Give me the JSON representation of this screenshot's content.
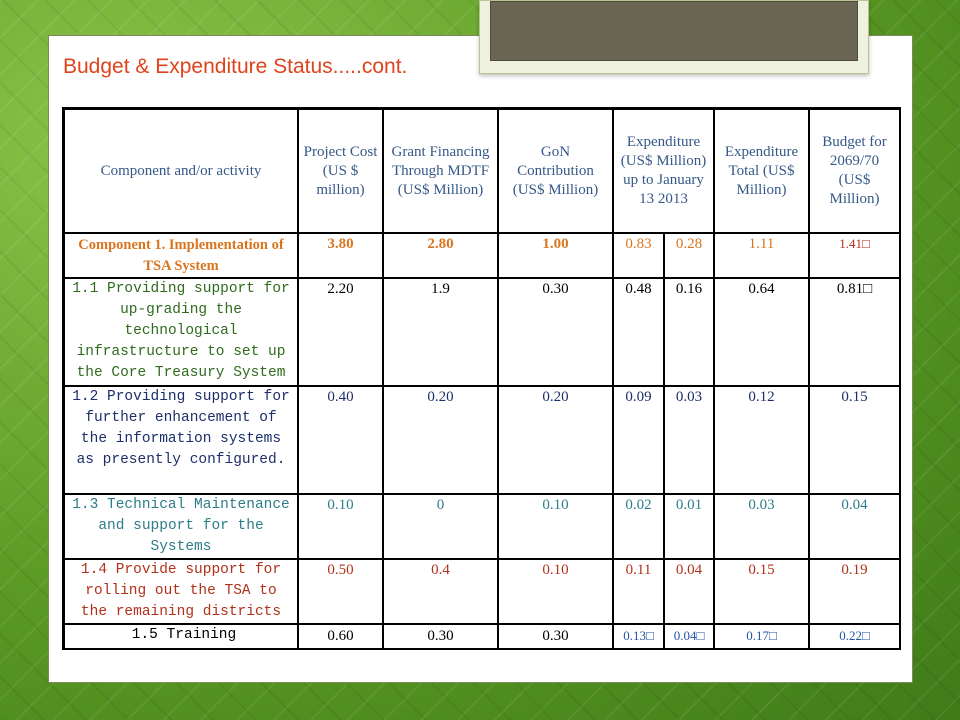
{
  "title": "Budget & Expenditure Status.....cont.",
  "headers": {
    "component": "Component and/or activity",
    "project_cost": "Project Cost (US $ million)",
    "grant": "Grant Financing Through MDTF (US$ Million)",
    "gon": "GoN Contribution (US$ Million)",
    "expenditure": "Expenditure (US$ Million) up to January 13 2013",
    "exp_total": "Expenditure Total (US$ Million)",
    "budget": "Budget for 2069/70 (US$ Million)"
  },
  "rows": [
    {
      "activity": "Component 1. Implementation of TSA System",
      "project_cost": "3.80",
      "grant": "2.80",
      "gon": "1.00",
      "exp_a": "0.83",
      "exp_b": "0.28",
      "exp_total": "1.11",
      "budget": "1.41□"
    },
    {
      "activity": "1.1 Providing support for up-grading the technological infrastructure to set up the Core Treasury System",
      "project_cost": "2.20",
      "grant": "1.9",
      "gon": "0.30",
      "exp_a": "0.48",
      "exp_b": "0.16",
      "exp_total": "0.64",
      "budget": "0.81□"
    },
    {
      "activity": "1.2 Providing support for further enhancement of the information systems as presently configured.",
      "project_cost": "0.40",
      "grant": "0.20",
      "gon": "0.20",
      "exp_a": "0.09",
      "exp_b": "0.03",
      "exp_total": "0.12",
      "budget": "0.15"
    },
    {
      "activity": "1.3 Technical Maintenance and support for the Systems",
      "project_cost": "0.10",
      "grant": "0",
      "gon": "0.10",
      "exp_a": "0.02",
      "exp_b": "0.01",
      "exp_total": "0.03",
      "budget": "0.04"
    },
    {
      "activity": "1.4 Provide support for rolling out the TSA to the remaining districts",
      "project_cost": "0.50",
      "grant": "0.4",
      "gon": "0.10",
      "exp_a": "0.11",
      "exp_b": "0.04",
      "exp_total": "0.15",
      "budget": "0.19"
    },
    {
      "activity": "1.5 Training",
      "project_cost": "0.60",
      "grant": "0.30",
      "gon": "0.30",
      "exp_a": "0.13□",
      "exp_b": "0.04□",
      "exp_total": "0.17□",
      "budget": "0.22□"
    }
  ],
  "colors": {
    "background_green": "#6aa32c",
    "title_orange": "#e0431b",
    "component_orange": "#d9751e",
    "header_blue": "#355888"
  }
}
